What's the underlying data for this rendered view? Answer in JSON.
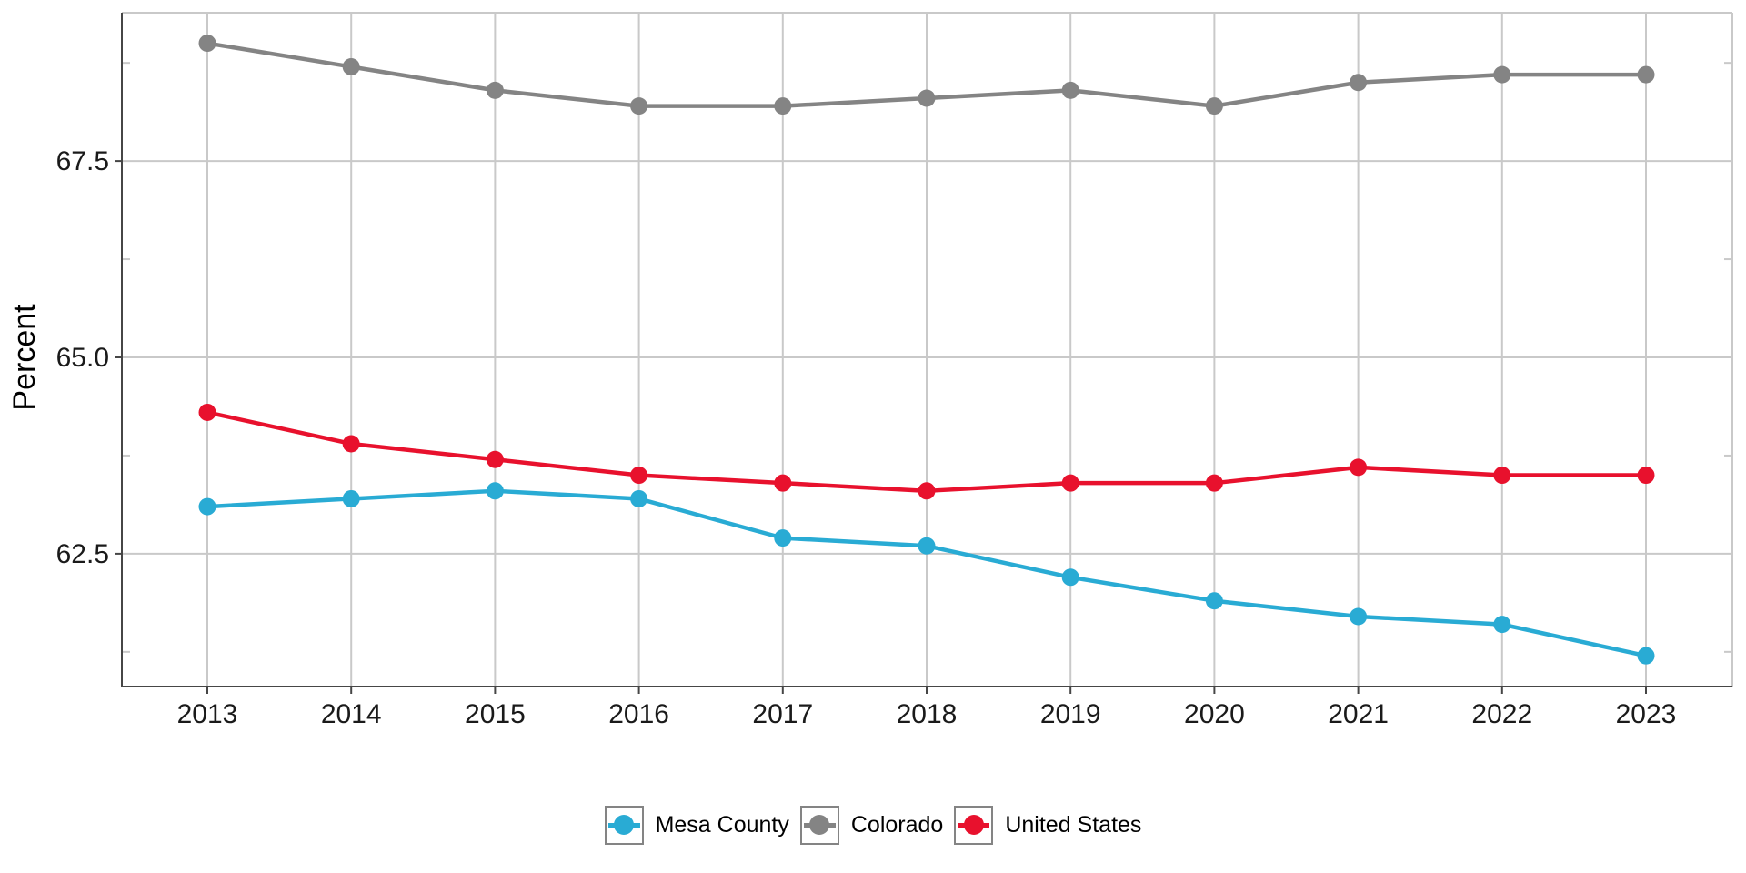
{
  "chart_data": {
    "type": "line",
    "title": "",
    "xlabel": "",
    "ylabel": "Percent",
    "x": [
      2013,
      2014,
      2015,
      2016,
      2017,
      2018,
      2019,
      2020,
      2021,
      2022,
      2023
    ],
    "x_tick_labels": [
      "2013",
      "2014",
      "2015",
      "2016",
      "2017",
      "2018",
      "2019",
      "2020",
      "2021",
      "2022",
      "2023"
    ],
    "y_ticks": [
      62.5,
      65.0,
      67.5
    ],
    "y_tick_labels": [
      "62.5",
      "65.0",
      "67.5"
    ],
    "y_minor_ticks": [
      61.25,
      63.75,
      66.25,
      68.75
    ],
    "ylim": [
      60.8,
      69.4
    ],
    "grid": "major gridlines on, light gray",
    "legend_position": "bottom-center",
    "series": [
      {
        "name": "Mesa County",
        "color": "#29ABD4",
        "values": [
          63.1,
          63.2,
          63.3,
          63.2,
          62.7,
          62.6,
          62.2,
          61.9,
          61.7,
          61.6,
          61.2
        ]
      },
      {
        "name": "Colorado",
        "color": "#848484",
        "values": [
          69.0,
          68.7,
          68.4,
          68.2,
          68.2,
          68.3,
          68.4,
          68.2,
          68.5,
          68.6,
          68.6
        ]
      },
      {
        "name": "United States",
        "color": "#E8112D",
        "values": [
          64.3,
          63.9,
          63.7,
          63.5,
          63.4,
          63.3,
          63.4,
          63.4,
          63.6,
          63.5,
          63.5
        ]
      }
    ]
  },
  "styles": {
    "grid_color": "#C9C9C9",
    "panel_border_color": "#C9C9C9",
    "axis_color": "#464646",
    "tick_label_color": "#1A1A1A",
    "legend_key_border_color": "#848484",
    "background": "#FFFFFF"
  }
}
